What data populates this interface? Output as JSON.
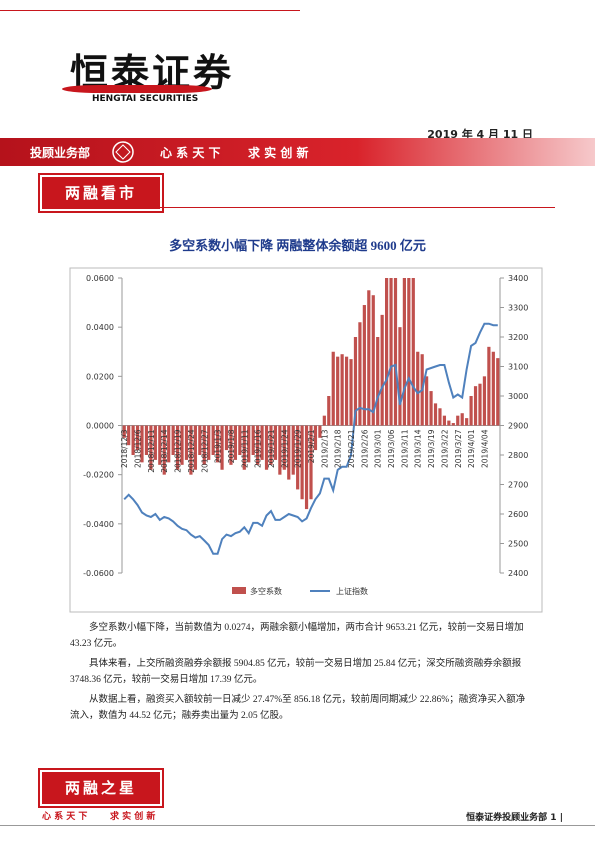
{
  "header": {
    "logo": "恒泰证券",
    "logo_en": "HENGTAI SECURITIES",
    "date": "2019 年 4 月 11 日",
    "department": "投顾业务部",
    "slogan_1": "心 系 天 下",
    "slogan_2": "求 实 创 新"
  },
  "section_title": "两融看市",
  "chart_data": {
    "type": "bar",
    "title": "多空系数小幅下降 两融整体余额超 9600 亿元",
    "categories": [
      "2018/12/3",
      null,
      null,
      "2018/12/6",
      null,
      null,
      "2018/12/11",
      null,
      null,
      "2018/12/14",
      null,
      null,
      "2018/12/19",
      null,
      null,
      "2018/12/24",
      null,
      null,
      "2018/12/27",
      null,
      null,
      "2019/1/3",
      null,
      null,
      "2019/1/8",
      null,
      null,
      "2019/1/11",
      null,
      null,
      "2019/1/16",
      null,
      null,
      "2019/1/21",
      null,
      null,
      "2019/1/24",
      null,
      null,
      "2019/1/29",
      null,
      null,
      "2019/2/1",
      null,
      null,
      "2019/2/13",
      null,
      null,
      "2019/2/18",
      null,
      null,
      "2019/2/21",
      null,
      null,
      "2019/2/26",
      null,
      null,
      "2019/3/01",
      null,
      null,
      "2019/3/06",
      null,
      null,
      "2019/3/11",
      null,
      null,
      "2019/3/14",
      null,
      null,
      "2019/3/19",
      null,
      null,
      "2019/3/22",
      null,
      null,
      "2019/3/27",
      null,
      null,
      "2019/4/01",
      null,
      null,
      "2019/4/04",
      null,
      null,
      null
    ],
    "series": [
      {
        "name": "多空系数",
        "color": "#c0504d",
        "type": "bar",
        "values": [
          -0.005,
          -0.008,
          -0.012,
          -0.01,
          -0.015,
          -0.012,
          -0.018,
          -0.014,
          -0.016,
          -0.02,
          -0.015,
          -0.012,
          -0.018,
          -0.016,
          -0.014,
          -0.02,
          -0.018,
          -0.012,
          -0.016,
          -0.014,
          -0.012,
          -0.015,
          -0.018,
          -0.01,
          -0.016,
          -0.014,
          -0.012,
          -0.018,
          -0.015,
          -0.012,
          -0.016,
          -0.014,
          -0.018,
          -0.016,
          -0.014,
          -0.02,
          -0.018,
          -0.022,
          -0.02,
          -0.026,
          -0.03,
          -0.034,
          -0.03,
          -0.01,
          -0.005,
          0.004,
          0.012,
          0.03,
          0.028,
          0.029,
          0.028,
          0.027,
          0.036,
          0.042,
          0.049,
          0.055,
          0.053,
          0.036,
          0.045,
          0.06,
          0.06,
          0.06,
          0.04,
          0.06,
          0.06,
          0.06,
          0.03,
          0.029,
          0.02,
          0.014,
          0.009,
          0.007,
          0.004,
          0.002,
          0.001,
          0.004,
          0.005,
          0.003,
          0.012,
          0.016,
          0.017,
          0.02,
          0.032,
          0.03,
          0.0274
        ]
      },
      {
        "name": "上证指数",
        "color": "#4f81bd",
        "type": "line",
        "axis": "y2",
        "values": [
          2650,
          2665,
          2650,
          2630,
          2605,
          2595,
          2590,
          2600,
          2580,
          2590,
          2585,
          2575,
          2560,
          2550,
          2545,
          2530,
          2520,
          2525,
          2510,
          2495,
          2465,
          2465,
          2515,
          2530,
          2525,
          2535,
          2540,
          2555,
          2535,
          2570,
          2570,
          2560,
          2595,
          2610,
          2580,
          2580,
          2590,
          2600,
          2595,
          2590,
          2575,
          2585,
          2620,
          2650,
          2670,
          2720,
          2720,
          2680,
          2750,
          2760,
          2760,
          2800,
          2950,
          2960,
          2955,
          2955,
          2945,
          2995,
          3030,
          3055,
          3100,
          3105,
          2970,
          3025,
          3060,
          3030,
          3010,
          3020,
          3090,
          3095,
          3100,
          3105,
          3105,
          3045,
          2995,
          3005,
          2995,
          3090,
          3170,
          3180,
          3215,
          3245,
          3245,
          3240,
          3240
        ]
      }
    ],
    "ylim": [
      -0.06,
      0.06
    ],
    "yticks": [
      {
        "value": -0.06,
        "label": "-0.0600"
      },
      {
        "value": -0.04,
        "label": "-0.0400"
      },
      {
        "value": -0.02,
        "label": "-0.0200"
      },
      {
        "value": 0,
        "label": "0.0000"
      },
      {
        "value": 0.02,
        "label": "0.0200"
      },
      {
        "value": 0.04,
        "label": "0.0400"
      },
      {
        "value": 0.06,
        "label": "0.0600"
      }
    ],
    "y2lim": [
      2400,
      3400
    ],
    "y2ticks": [
      2400,
      2500,
      2600,
      2700,
      2800,
      2900,
      3000,
      3100,
      3200,
      3300,
      3400
    ],
    "grid": false,
    "legend": "bottom"
  },
  "paragraphs": [
    "多空系数小幅下降，当前数值为 0.0274，两融余额小幅增加，两市合计 9653.21 亿元，较前一交易日增加 43.23 亿元。",
    "具体来看，上交所融资融券余额报 5904.85 亿元，较前一交易日增加 25.84 亿元；深交所融资融券余额报 3748.36 亿元，较前一交易日增加 17.39 亿元。",
    "从数据上看，融资买入额较前一日减少 27.47%至 856.18 亿元，较前周同期减少 22.86%；融资净买入额净流入，数值为 44.52 亿元；融券卖出量为 2.05 亿股。"
  ],
  "footer": {
    "section_title": "两融之星",
    "slogan_1": "心 系 天 下",
    "slogan_2": "求 实 创 新",
    "page_note": "恒泰证券投顾业务部 1 |"
  }
}
